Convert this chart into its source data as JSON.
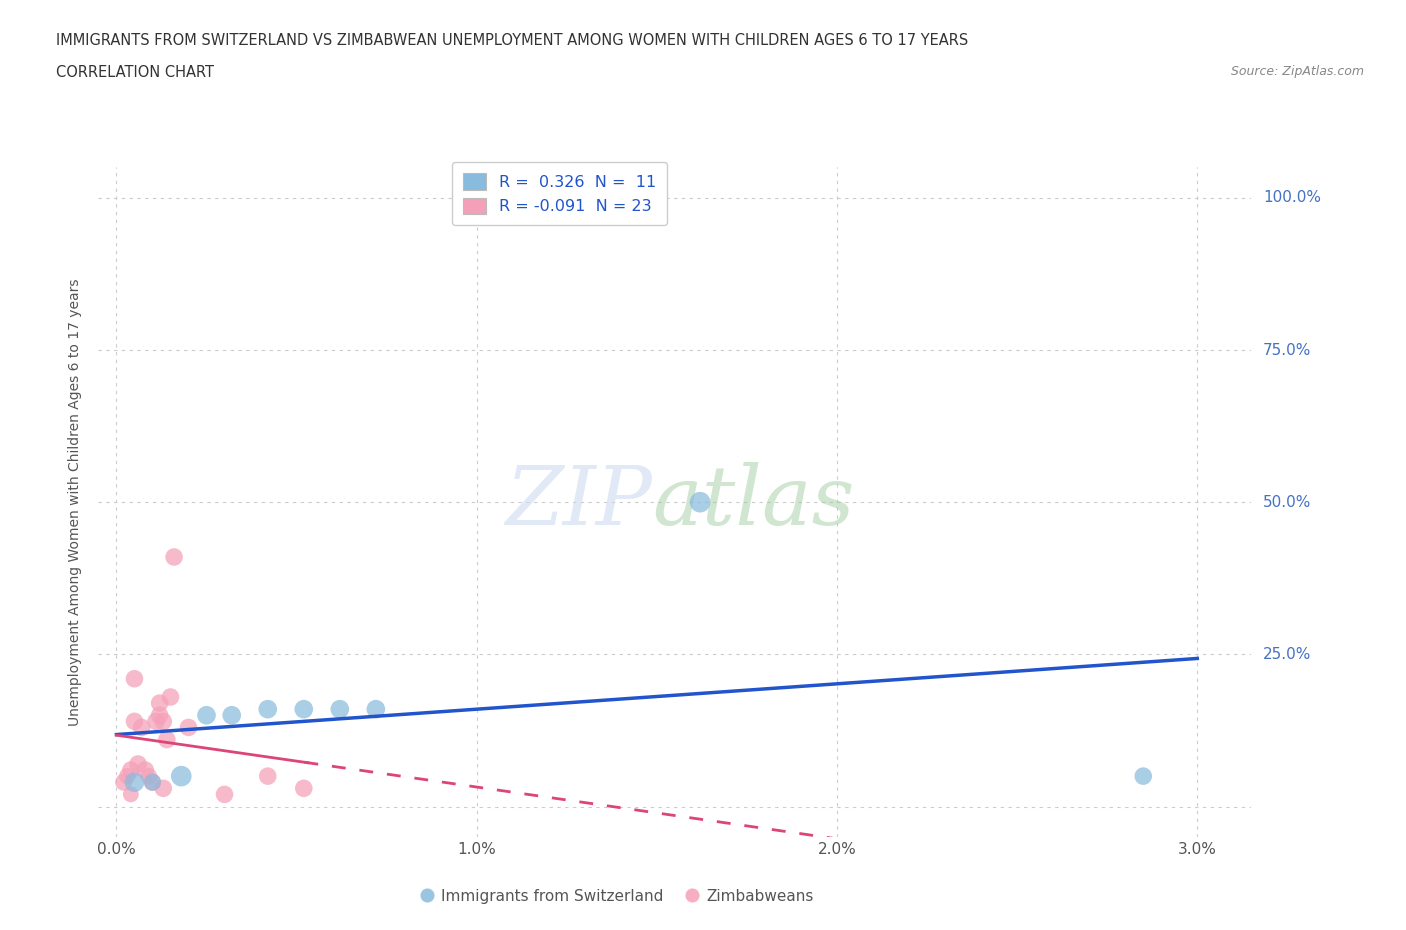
{
  "title_line1": "IMMIGRANTS FROM SWITZERLAND VS ZIMBABWEAN UNEMPLOYMENT AMONG WOMEN WITH CHILDREN AGES 6 TO 17 YEARS",
  "title_line2": "CORRELATION CHART",
  "source_text": "Source: ZipAtlas.com",
  "ylabel": "Unemployment Among Women with Children Ages 6 to 17 years",
  "xlabel_vals": [
    0.0,
    1.0,
    2.0,
    3.0
  ],
  "ylim": [
    -0.05,
    1.05
  ],
  "xlim": [
    -0.05,
    3.15
  ],
  "yticks": [
    0.0,
    0.25,
    0.5,
    0.75,
    1.0
  ],
  "ytick_labels": [
    "",
    "25.0%",
    "50.0%",
    "75.0%",
    "100.0%"
  ],
  "legend_r1": "R =  0.326  N =  11",
  "legend_r2": "R = -0.091  N = 23",
  "blue_color": "#88bbdd",
  "pink_color": "#f4a0b8",
  "trend_blue": "#2255cc",
  "trend_pink": "#dd4477",
  "swiss_x": [
    0.05,
    0.1,
    0.18,
    0.25,
    0.32,
    0.42,
    0.52,
    0.62,
    0.72,
    1.62,
    2.85
  ],
  "swiss_y": [
    0.04,
    0.04,
    0.05,
    0.15,
    0.15,
    0.16,
    0.16,
    0.16,
    0.16,
    0.5,
    0.05
  ],
  "swiss_size": [
    200,
    150,
    220,
    180,
    180,
    180,
    180,
    180,
    180,
    220,
    160
  ],
  "zimb_x": [
    0.02,
    0.03,
    0.04,
    0.04,
    0.05,
    0.05,
    0.06,
    0.07,
    0.08,
    0.09,
    0.1,
    0.11,
    0.12,
    0.12,
    0.13,
    0.13,
    0.14,
    0.15,
    0.16,
    0.2,
    0.3,
    0.42,
    0.52
  ],
  "zimb_y": [
    0.04,
    0.05,
    0.06,
    0.02,
    0.21,
    0.14,
    0.07,
    0.13,
    0.06,
    0.05,
    0.04,
    0.14,
    0.17,
    0.15,
    0.14,
    0.03,
    0.11,
    0.18,
    0.41,
    0.13,
    0.02,
    0.05,
    0.03
  ],
  "zimb_size": [
    150,
    140,
    160,
    130,
    160,
    160,
    160,
    160,
    160,
    140,
    160,
    160,
    160,
    160,
    160,
    160,
    160,
    160,
    160,
    160,
    160,
    160,
    160
  ],
  "background_color": "#ffffff",
  "grid_color": "#cccccc",
  "title_color": "#333333",
  "tick_blue": "#4472c4",
  "tick_dark": "#555555"
}
